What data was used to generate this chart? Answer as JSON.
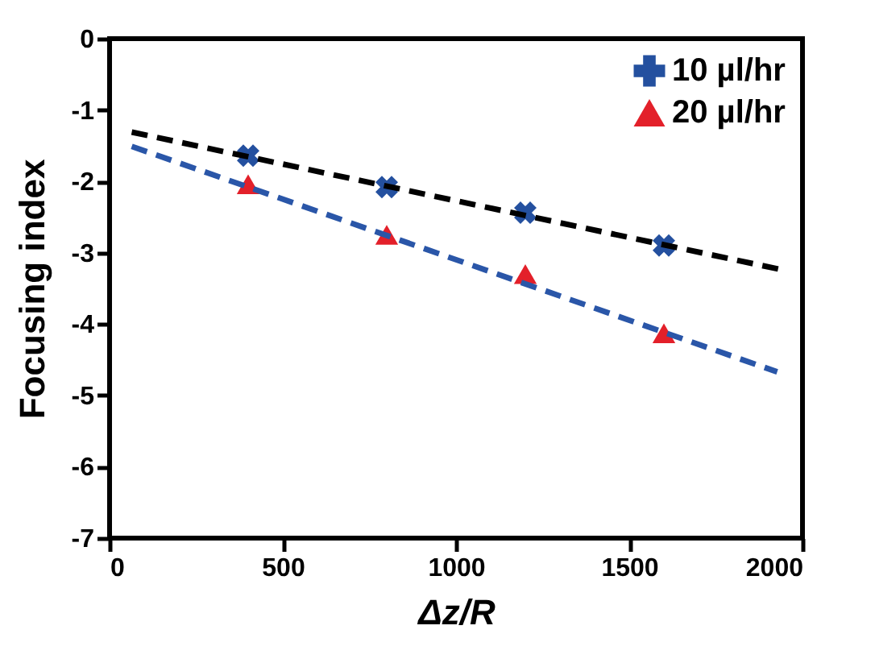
{
  "chart_data": {
    "type": "scatter",
    "xlabel": "Δz/R",
    "ylabel": "Focusing index",
    "xlim": [
      0,
      2000
    ],
    "xticks": [
      0,
      500,
      1000,
      1500,
      2000
    ],
    "ylim": [
      -7,
      0
    ],
    "yticks": [
      -7,
      -6,
      -5,
      -4,
      -3,
      -2,
      -1,
      0
    ],
    "grid": false,
    "legend": "top right",
    "series": [
      {
        "name": "10 µl/hr",
        "type": "scatter",
        "marker": "cross",
        "color": "#24509f",
        "x": [
          400,
          800,
          1200,
          1600
        ],
        "values": [
          -1.64,
          -2.08,
          -2.44,
          -2.9
        ]
      },
      {
        "name": "20 µl/hr",
        "type": "scatter",
        "marker": "triangle",
        "color": "#e3202a",
        "x": [
          400,
          800,
          1200,
          1600
        ],
        "values": [
          -2.04,
          -2.75,
          -3.3,
          -4.13
        ]
      },
      {
        "type": "line",
        "marker": "none",
        "line_style": "dashed",
        "color": "#000000",
        "x": [
          64,
          1932
        ],
        "values": [
          -1.31,
          -3.23
        ]
      },
      {
        "type": "line",
        "marker": "none",
        "line_style": "dashed",
        "color": "#2a56a8",
        "x": [
          64,
          1927
        ],
        "values": [
          -1.51,
          -4.67
        ]
      }
    ]
  }
}
